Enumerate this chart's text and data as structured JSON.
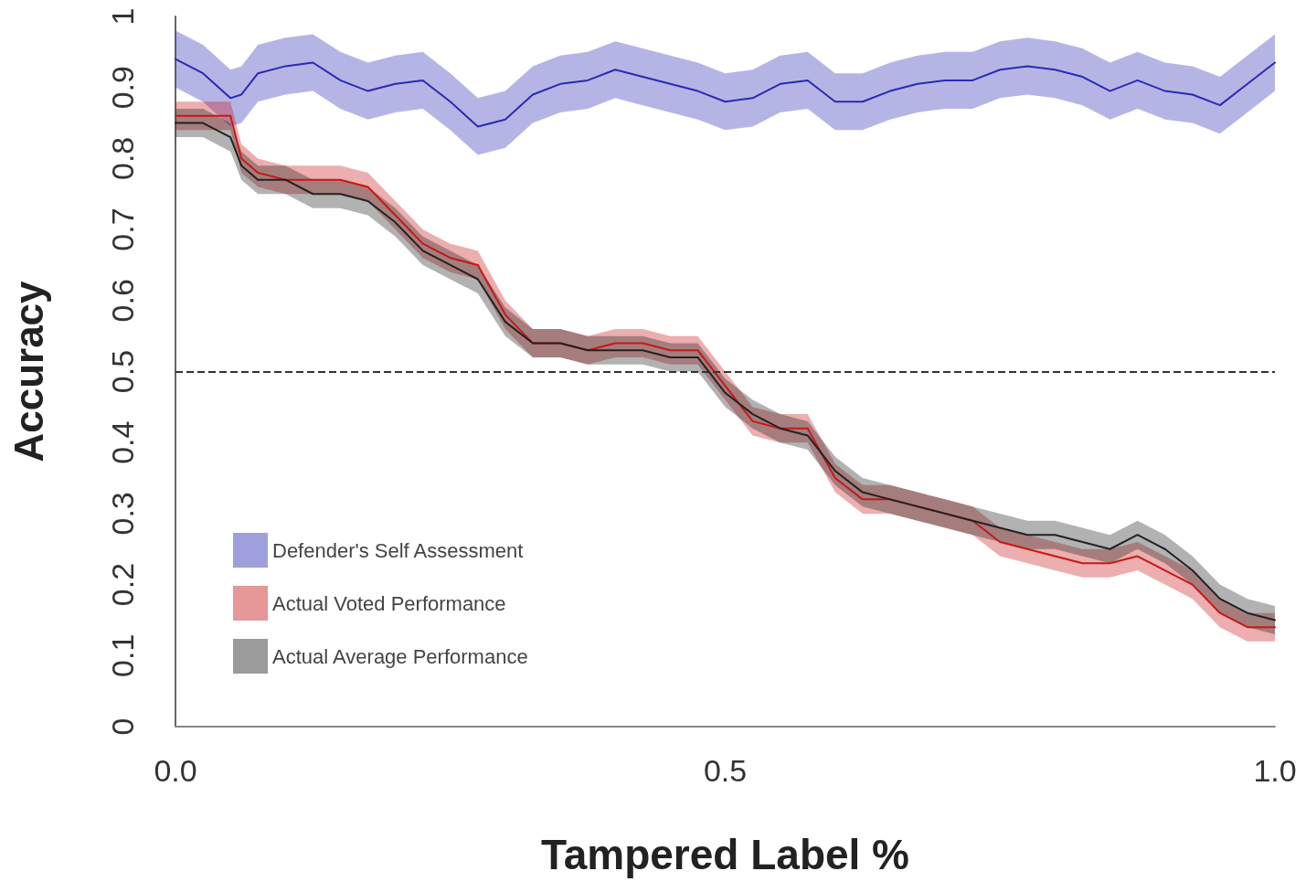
{
  "chart_data": {
    "type": "line",
    "xlabel": "Tampered Label %",
    "ylabel": "Accuracy",
    "x": [
      0,
      0.025,
      0.05,
      0.06,
      0.075,
      0.1,
      0.125,
      0.15,
      0.175,
      0.2,
      0.225,
      0.25,
      0.275,
      0.3,
      0.325,
      0.35,
      0.375,
      0.4,
      0.425,
      0.45,
      0.475,
      0.5,
      0.525,
      0.55,
      0.575,
      0.6,
      0.625,
      0.65,
      0.675,
      0.7,
      0.725,
      0.75,
      0.775,
      0.8,
      0.825,
      0.85,
      0.875,
      0.9,
      0.925,
      0.95,
      0.975,
      1
    ],
    "xlim": [
      0,
      1
    ],
    "xticks": [
      {
        "value": 0,
        "label": "0.0"
      },
      0.5,
      {
        "value": 1,
        "label": "1.0"
      }
    ],
    "ylim": [
      0,
      1
    ],
    "yticks": [
      0,
      0.1,
      0.2,
      0.3,
      0.4,
      0.5,
      0.6,
      0.7,
      0.8,
      0.9,
      1
    ],
    "grid": false,
    "legend": "bottom left",
    "marker": "none",
    "line_style": "solid",
    "ref_lines": [
      {
        "axis": "y",
        "value": 0.5,
        "color": "#333333",
        "line_style": "dashed"
      }
    ],
    "series": [
      {
        "name": "Defender's Self Assessment",
        "color": "#2a2ab4",
        "values": [
          0.94,
          0.92,
          0.885,
          0.89,
          0.92,
          0.93,
          0.935,
          0.91,
          0.895,
          0.905,
          0.91,
          0.88,
          0.845,
          0.855,
          0.89,
          0.905,
          0.91,
          0.925,
          0.915,
          0.905,
          0.895,
          0.88,
          0.885,
          0.905,
          0.91,
          0.88,
          0.88,
          0.895,
          0.905,
          0.91,
          0.91,
          0.925,
          0.93,
          0.925,
          0.915,
          0.895,
          0.91,
          0.895,
          0.89,
          0.875,
          0.905,
          0.935
        ],
        "lower": [
          0.9,
          0.88,
          0.845,
          0.85,
          0.88,
          0.89,
          0.895,
          0.87,
          0.855,
          0.865,
          0.87,
          0.84,
          0.805,
          0.815,
          0.85,
          0.865,
          0.87,
          0.885,
          0.875,
          0.865,
          0.855,
          0.84,
          0.845,
          0.865,
          0.87,
          0.84,
          0.84,
          0.855,
          0.865,
          0.87,
          0.87,
          0.885,
          0.89,
          0.885,
          0.875,
          0.855,
          0.87,
          0.855,
          0.85,
          0.835,
          0.865,
          0.895
        ],
        "upper": [
          0.98,
          0.96,
          0.925,
          0.93,
          0.96,
          0.97,
          0.975,
          0.95,
          0.935,
          0.945,
          0.95,
          0.92,
          0.885,
          0.895,
          0.93,
          0.945,
          0.95,
          0.965,
          0.955,
          0.945,
          0.935,
          0.92,
          0.925,
          0.945,
          0.95,
          0.92,
          0.92,
          0.935,
          0.945,
          0.95,
          0.95,
          0.965,
          0.97,
          0.965,
          0.955,
          0.935,
          0.95,
          0.935,
          0.93,
          0.915,
          0.945,
          0.975
        ]
      },
      {
        "name": "Actual Voted Performance",
        "color": "#c81818",
        "values": [
          0.86,
          0.86,
          0.86,
          0.8,
          0.78,
          0.77,
          0.77,
          0.77,
          0.76,
          0.72,
          0.68,
          0.66,
          0.65,
          0.58,
          0.54,
          0.54,
          0.53,
          0.54,
          0.54,
          0.53,
          0.53,
          0.48,
          0.43,
          0.42,
          0.42,
          0.35,
          0.32,
          0.32,
          0.31,
          0.3,
          0.29,
          0.26,
          0.25,
          0.24,
          0.23,
          0.23,
          0.24,
          0.22,
          0.2,
          0.16,
          0.14,
          0.14
        ],
        "lower": [
          0.84,
          0.84,
          0.84,
          0.78,
          0.76,
          0.75,
          0.75,
          0.75,
          0.74,
          0.7,
          0.66,
          0.64,
          0.63,
          0.56,
          0.52,
          0.52,
          0.51,
          0.52,
          0.52,
          0.51,
          0.51,
          0.46,
          0.41,
          0.4,
          0.4,
          0.33,
          0.3,
          0.3,
          0.29,
          0.28,
          0.27,
          0.24,
          0.23,
          0.22,
          0.21,
          0.21,
          0.22,
          0.2,
          0.18,
          0.14,
          0.12,
          0.12
        ],
        "upper": [
          0.88,
          0.88,
          0.88,
          0.82,
          0.8,
          0.79,
          0.79,
          0.79,
          0.78,
          0.74,
          0.7,
          0.68,
          0.67,
          0.6,
          0.56,
          0.56,
          0.55,
          0.56,
          0.56,
          0.55,
          0.55,
          0.5,
          0.45,
          0.44,
          0.44,
          0.37,
          0.34,
          0.34,
          0.33,
          0.32,
          0.31,
          0.28,
          0.27,
          0.26,
          0.25,
          0.25,
          0.26,
          0.24,
          0.22,
          0.18,
          0.16,
          0.16
        ]
      },
      {
        "name": "Actual Average Performance",
        "color": "#222222",
        "values": [
          0.85,
          0.85,
          0.83,
          0.79,
          0.77,
          0.77,
          0.75,
          0.75,
          0.74,
          0.71,
          0.67,
          0.65,
          0.63,
          0.57,
          0.54,
          0.54,
          0.53,
          0.53,
          0.53,
          0.52,
          0.52,
          0.47,
          0.44,
          0.42,
          0.41,
          0.36,
          0.33,
          0.32,
          0.31,
          0.3,
          0.29,
          0.28,
          0.27,
          0.27,
          0.26,
          0.25,
          0.27,
          0.25,
          0.22,
          0.18,
          0.16,
          0.15
        ],
        "lower": [
          0.83,
          0.83,
          0.81,
          0.77,
          0.75,
          0.75,
          0.73,
          0.73,
          0.72,
          0.69,
          0.65,
          0.63,
          0.61,
          0.55,
          0.52,
          0.52,
          0.51,
          0.51,
          0.51,
          0.5,
          0.5,
          0.45,
          0.42,
          0.4,
          0.39,
          0.34,
          0.31,
          0.3,
          0.29,
          0.28,
          0.27,
          0.26,
          0.25,
          0.25,
          0.24,
          0.23,
          0.25,
          0.23,
          0.2,
          0.16,
          0.14,
          0.13
        ],
        "upper": [
          0.87,
          0.87,
          0.85,
          0.81,
          0.79,
          0.79,
          0.77,
          0.77,
          0.76,
          0.73,
          0.69,
          0.67,
          0.65,
          0.59,
          0.56,
          0.56,
          0.55,
          0.55,
          0.55,
          0.54,
          0.54,
          0.49,
          0.46,
          0.44,
          0.43,
          0.38,
          0.35,
          0.34,
          0.33,
          0.32,
          0.31,
          0.3,
          0.29,
          0.29,
          0.28,
          0.27,
          0.29,
          0.27,
          0.24,
          0.2,
          0.18,
          0.17
        ]
      }
    ]
  }
}
